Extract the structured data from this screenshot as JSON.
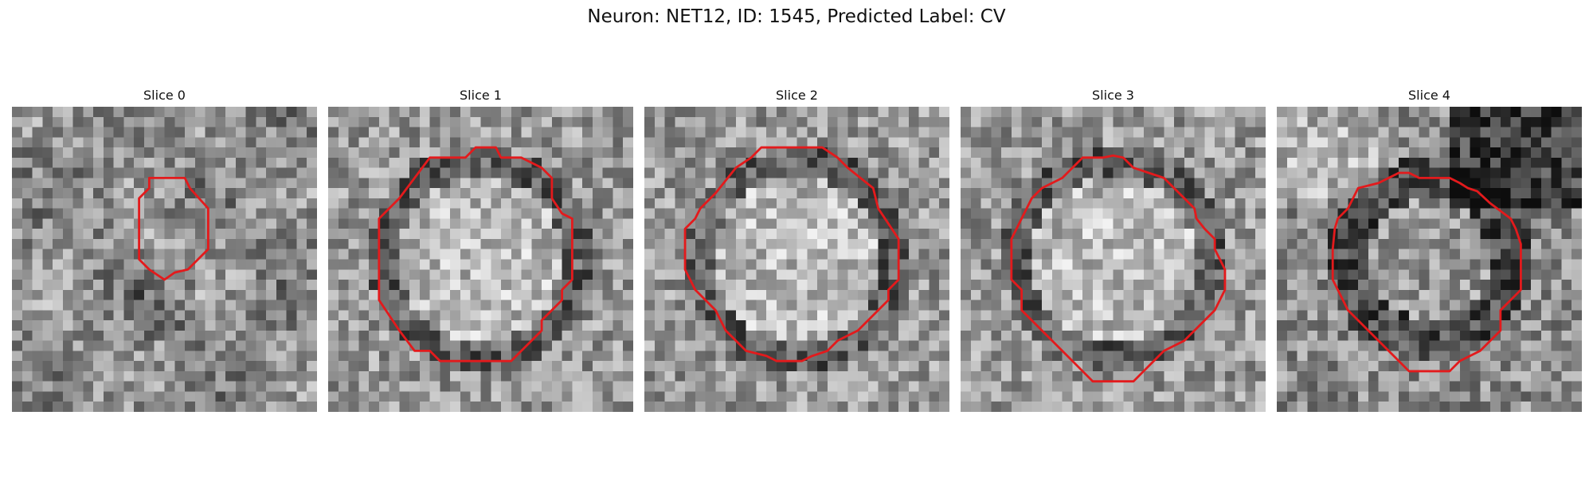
{
  "figure": {
    "title": "Neuron: NET12, ID: 1545, Predicted Label: CV"
  },
  "outline_color": "#e31a1c",
  "slices": [
    {
      "title": "Slice 0",
      "seed": 11,
      "blob": "small"
    },
    {
      "title": "Slice 1",
      "seed": 23,
      "blob": "bright_ring"
    },
    {
      "title": "Slice 2",
      "seed": 37,
      "blob": "bright_ring"
    },
    {
      "title": "Slice 3",
      "seed": 51,
      "blob": "bright_ring"
    },
    {
      "title": "Slice 4",
      "seed": 67,
      "blob": "dark_ring"
    }
  ]
}
